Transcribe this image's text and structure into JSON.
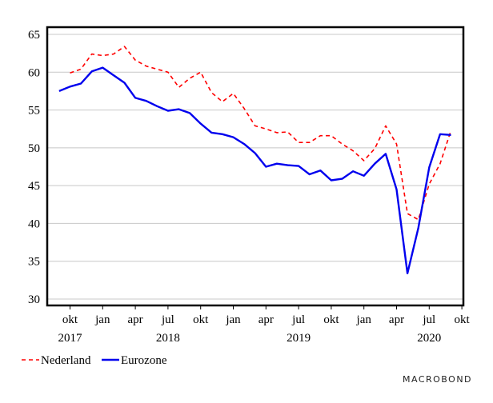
{
  "chart_data": {
    "type": "line",
    "title": "",
    "xlabel": "",
    "ylabel": "",
    "ylim": [
      30,
      65
    ],
    "y_ticks": [
      30,
      35,
      40,
      45,
      50,
      55,
      60,
      65
    ],
    "grid": true,
    "legend_position": "bottom-left",
    "x_month_ticks": [
      {
        "label": "okt",
        "month": 0
      },
      {
        "label": "jan",
        "month": 3
      },
      {
        "label": "apr",
        "month": 6
      },
      {
        "label": "jul",
        "month": 9
      },
      {
        "label": "okt",
        "month": 12
      },
      {
        "label": "jan",
        "month": 15
      },
      {
        "label": "apr",
        "month": 18
      },
      {
        "label": "jul",
        "month": 21
      },
      {
        "label": "okt",
        "month": 24
      },
      {
        "label": "jan",
        "month": 27
      },
      {
        "label": "apr",
        "month": 30
      },
      {
        "label": "jul",
        "month": 33
      },
      {
        "label": "okt",
        "month": 36
      }
    ],
    "x_year_labels": [
      {
        "label": "2017",
        "month": 0
      },
      {
        "label": "2018",
        "month": 9
      },
      {
        "label": "2019",
        "month": 21
      },
      {
        "label": "2020",
        "month": 33
      }
    ],
    "x": [
      "2017-08",
      "2017-09",
      "2017-10",
      "2017-11",
      "2017-12",
      "2018-01",
      "2018-02",
      "2018-03",
      "2018-04",
      "2018-05",
      "2018-06",
      "2018-07",
      "2018-08",
      "2018-09",
      "2018-10",
      "2018-11",
      "2018-12",
      "2019-01",
      "2019-02",
      "2019-03",
      "2019-04",
      "2019-05",
      "2019-06",
      "2019-07",
      "2019-08",
      "2019-09",
      "2019-10",
      "2019-11",
      "2019-12",
      "2020-01",
      "2020-02",
      "2020-03",
      "2020-04",
      "2020-05",
      "2020-06",
      "2020-07",
      "2020-08",
      "2020-09"
    ],
    "series": [
      {
        "name": "Nederland",
        "color": "#ff0000",
        "dash": true,
        "values": [
          null,
          59.9,
          60.4,
          62.4,
          62.2,
          62.4,
          63.4,
          61.6,
          60.8,
          60.4,
          60.0,
          58.0,
          59.2,
          60.0,
          57.3,
          56.1,
          57.2,
          55.2,
          52.9,
          52.5,
          52.0,
          52.1,
          50.7,
          50.7,
          51.6,
          51.6,
          50.5,
          49.6,
          48.3,
          49.9,
          52.9,
          50.5,
          41.3,
          40.5,
          45.2,
          47.9,
          52.3,
          null
        ]
      },
      {
        "name": "Eurozone",
        "color": "#0000ee",
        "dash": false,
        "values": [
          57.5,
          58.1,
          58.5,
          60.1,
          60.6,
          59.6,
          58.6,
          56.6,
          56.2,
          55.5,
          54.9,
          55.1,
          54.6,
          53.2,
          52.0,
          51.8,
          51.4,
          50.5,
          49.3,
          47.5,
          47.9,
          47.7,
          47.6,
          46.5,
          47.0,
          45.7,
          45.9,
          46.9,
          46.3,
          47.9,
          49.2,
          44.5,
          33.4,
          39.4,
          47.4,
          51.8,
          51.7,
          null
        ]
      }
    ],
    "legend": [
      {
        "label": "Nederland",
        "color": "#ff0000",
        "dash": true
      },
      {
        "label": "Eurozone",
        "color": "#0000ee",
        "dash": false
      }
    ]
  },
  "brand": {
    "text": "MACROBOND"
  }
}
